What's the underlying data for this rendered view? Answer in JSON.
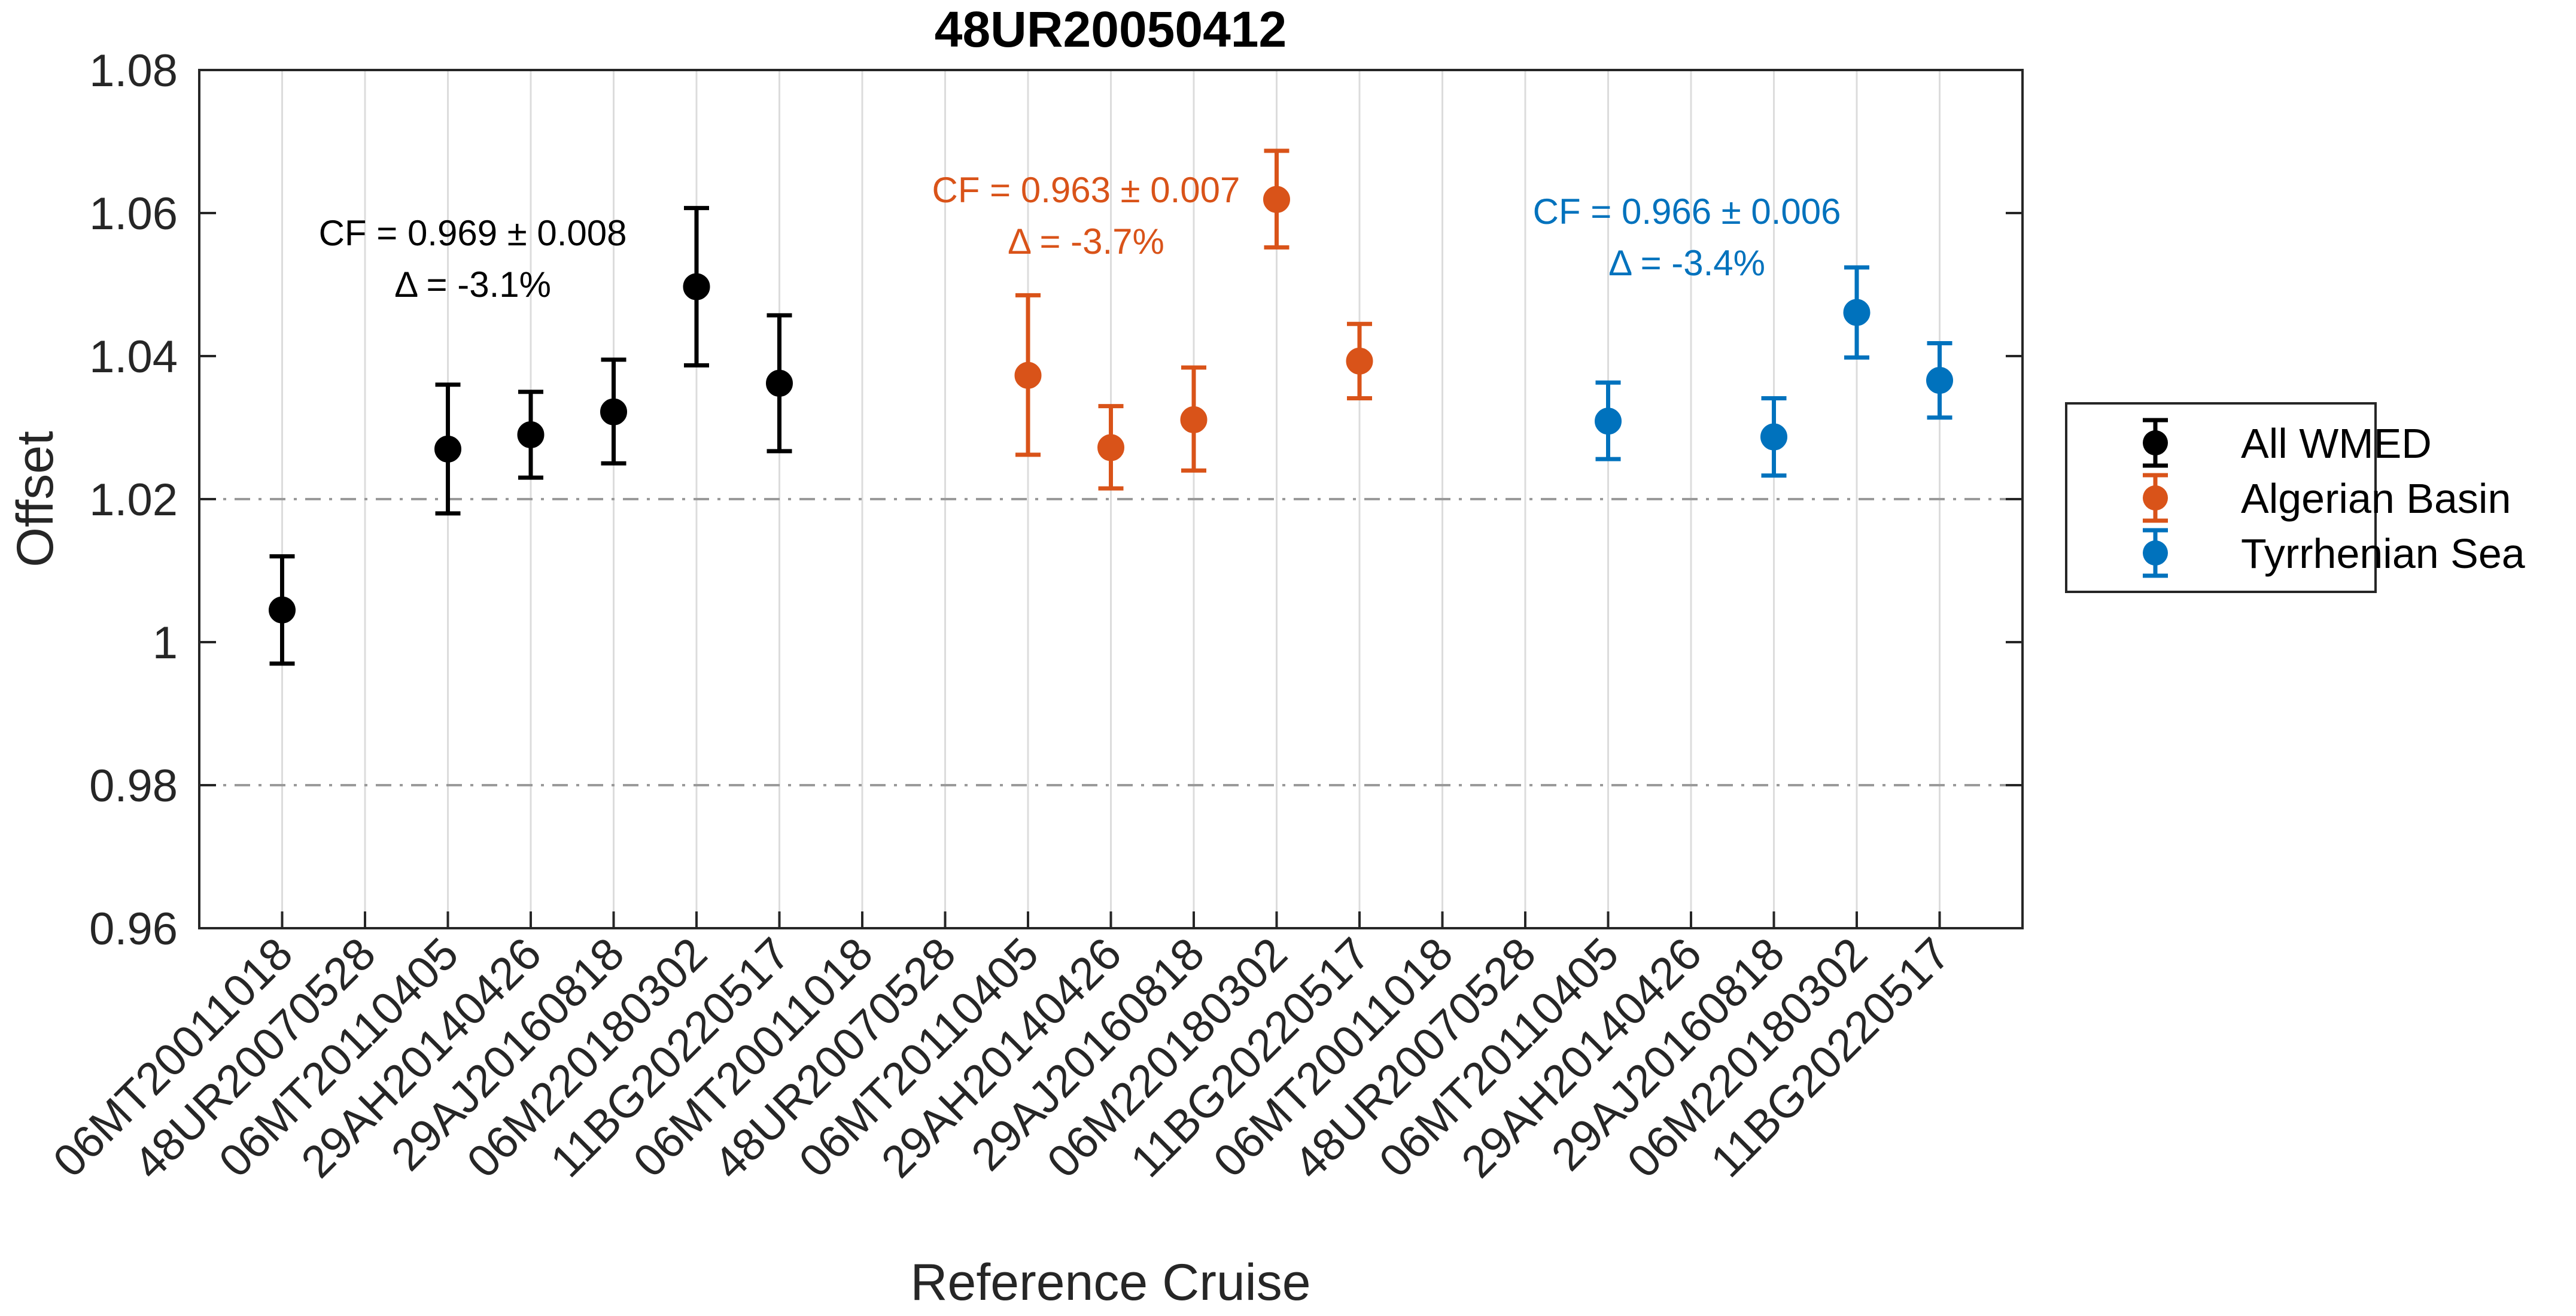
{
  "chart_data": {
    "type": "scatter",
    "title": "48UR20050412",
    "xlabel": "Reference Cruise",
    "ylabel": "Offset",
    "ylim": [
      0.96,
      1.08
    ],
    "yticks": [
      0.96,
      0.98,
      1,
      1.02,
      1.04,
      1.06,
      1.08
    ],
    "ytick_labels": [
      "0.96",
      "0.98",
      "1",
      "1.02",
      "1.04",
      "1.06",
      "1.08"
    ],
    "grid": "vertical",
    "reference_lines": [
      0.98,
      1.02
    ],
    "legend_position": "outside-right",
    "categories": [
      "06MT20011018",
      "48UR20070528",
      "06MT20110405",
      "29AH20140426",
      "29AJ20160818",
      "06M220180302",
      "11BG20220517",
      "06MT20011018",
      "48UR20070528",
      "06MT20110405",
      "29AH20140426",
      "29AJ20160818",
      "06M220180302",
      "11BG20220517",
      "06MT20011018",
      "48UR20070528",
      "06MT20110405",
      "29AH20140426",
      "29AJ20160818",
      "06M220180302",
      "11BG20220517"
    ],
    "series": [
      {
        "name": "All WMED",
        "color": "#000000",
        "points": [
          {
            "x": 1,
            "y": 1.0045,
            "low": 0.997,
            "high": 1.012
          },
          {
            "x": 3,
            "y": 1.027,
            "low": 1.018,
            "high": 1.036
          },
          {
            "x": 4,
            "y": 1.029,
            "low": 1.023,
            "high": 1.035
          },
          {
            "x": 5,
            "y": 1.0322,
            "low": 1.025,
            "high": 1.0395
          },
          {
            "x": 6,
            "y": 1.0497,
            "low": 1.0387,
            "high": 1.0607
          },
          {
            "x": 7,
            "y": 1.0362,
            "low": 1.0267,
            "high": 1.0457
          }
        ]
      },
      {
        "name": "Algerian Basin",
        "color": "#D95319",
        "points": [
          {
            "x": 10,
            "y": 1.0373,
            "low": 1.0262,
            "high": 1.0485
          },
          {
            "x": 11,
            "y": 1.0272,
            "low": 1.0215,
            "high": 1.033
          },
          {
            "x": 12,
            "y": 1.0311,
            "low": 1.024,
            "high": 1.0384
          },
          {
            "x": 13,
            "y": 1.0619,
            "low": 1.0552,
            "high": 1.0687
          },
          {
            "x": 14,
            "y": 1.0393,
            "low": 1.0341,
            "high": 1.0445
          }
        ]
      },
      {
        "name": "Tyrrhenian Sea",
        "color": "#0072BD",
        "points": [
          {
            "x": 17,
            "y": 1.0309,
            "low": 1.0256,
            "high": 1.0363
          },
          {
            "x": 19,
            "y": 1.0287,
            "low": 1.0233,
            "high": 1.0341
          },
          {
            "x": 20,
            "y": 1.0461,
            "low": 1.0398,
            "high": 1.0524
          },
          {
            "x": 21,
            "y": 1.0366,
            "low": 1.0314,
            "high": 1.0418
          }
        ]
      }
    ],
    "annotations": [
      {
        "line1": "CF = 0.969 ± 0.008",
        "line2": "Δ = -3.1%",
        "color": "#000000",
        "x": 3.3,
        "y": 1.0555
      },
      {
        "line1": "CF = 0.963 ± 0.007",
        "line2": "Δ = -3.7%",
        "color": "#D95319",
        "x": 10.7,
        "y": 1.0615
      },
      {
        "line1": "CF = 0.966 ± 0.006",
        "line2": "Δ = -3.4%",
        "color": "#0072BD",
        "x": 17.95,
        "y": 1.0585
      }
    ]
  }
}
